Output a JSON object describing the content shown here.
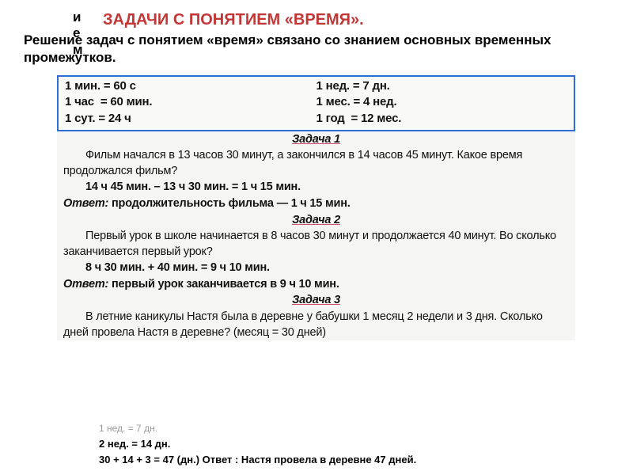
{
  "colors": {
    "title": "#c23636",
    "boxBorder": "#2e6fd6",
    "underline": "#d24a6a",
    "scanBg": "#f5f5f3",
    "text": "#111111"
  },
  "vertical": {
    "c1": "и",
    "c2": "е",
    "c3": "м"
  },
  "titleRed": "ЗАДАЧИ  С ПОНЯТИЕМ  «ВРЕМЯ».",
  "intro": "Решение задач с понятием «время» связано со знанием основных временных промежутков.",
  "timebox": {
    "left": [
      "1 мин. = 60 с",
      "1 час  = 60 мин.",
      "1 сут. = 24 ч"
    ],
    "right": [
      "1 нед. = 7 дн.",
      "1 мес. = 4 нед.",
      "1 год  = 12 мес."
    ]
  },
  "task1": {
    "title": "Задача  1",
    "text": "Фильм начался в 13 часов 30 минут, а закончился в 14 часов 45 минут. Какое время продолжался фильм?",
    "calc": "14 ч 45 мин. – 13 ч 30 мин. = 1 ч 15 мин.",
    "answerLabel": "Ответ:",
    "answer": "продолжительность фильма — 1 ч 15 мин."
  },
  "task2": {
    "title": "Задача  2",
    "text": "Первый урок в школе начинается в 8 часов 30 минут и продолжается 40 минут. Во сколько заканчивается первый урок?",
    "calc": "8 ч 30 мин. + 40 мин. = 9 ч 10 мин.",
    "answerLabel": "Ответ:",
    "answer": "первый урок заканчивается в 9 ч 10 мин."
  },
  "task3": {
    "title": "Задача  3",
    "text": "В летние каникулы Настя была в деревне у бабушки 1 месяц 2 недели и 3 дня. Сколько дней провела Настя в деревне? (месяц = 30 дней)"
  },
  "footer": {
    "cut": "1 нед. = 7 дн.",
    "l1": "2 нед. = 14 дн.",
    "l2": "30 + 14    + 3 = 47 (дн.) Ответ : Настя провела в деревне 47 дней."
  }
}
